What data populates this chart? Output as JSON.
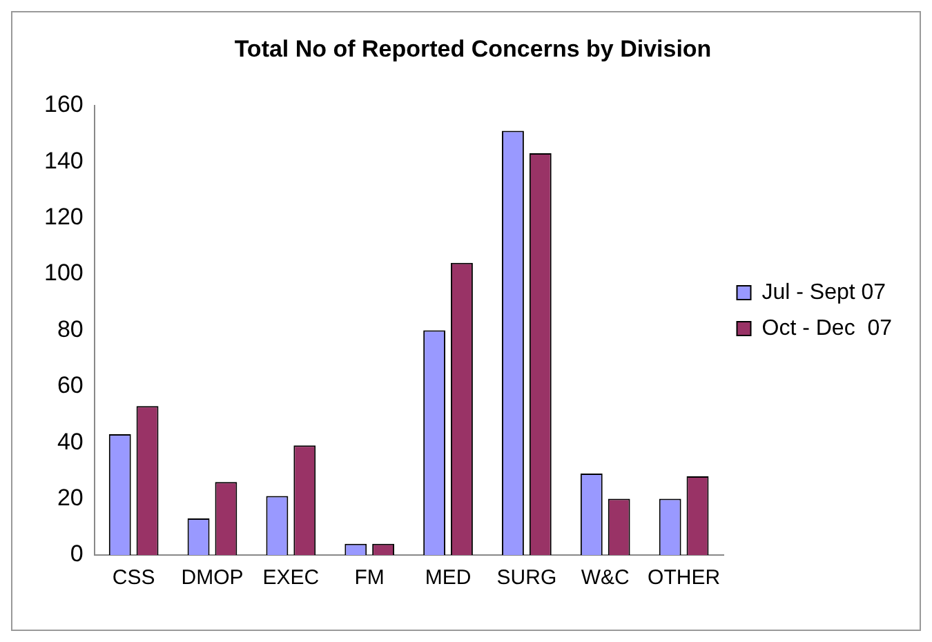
{
  "chart_data": {
    "type": "bar",
    "title": "Total No of Reported Concerns by Division",
    "categories": [
      "CSS",
      "DMOP",
      "EXEC",
      "FM",
      "MED",
      "SURG",
      "W&C",
      "OTHER"
    ],
    "series": [
      {
        "name": "Jul - Sept 07",
        "color": "#9999ff",
        "values": [
          43,
          13,
          21,
          4,
          80,
          151,
          29,
          20
        ]
      },
      {
        "name": "Oct - Dec  07",
        "color": "#993366",
        "values": [
          53,
          26,
          39,
          4,
          104,
          143,
          20,
          28
        ]
      }
    ],
    "ylim": [
      0,
      160
    ],
    "yticks": [
      0,
      20,
      40,
      60,
      80,
      100,
      120,
      140,
      160
    ],
    "grid": false,
    "legend": "right"
  }
}
